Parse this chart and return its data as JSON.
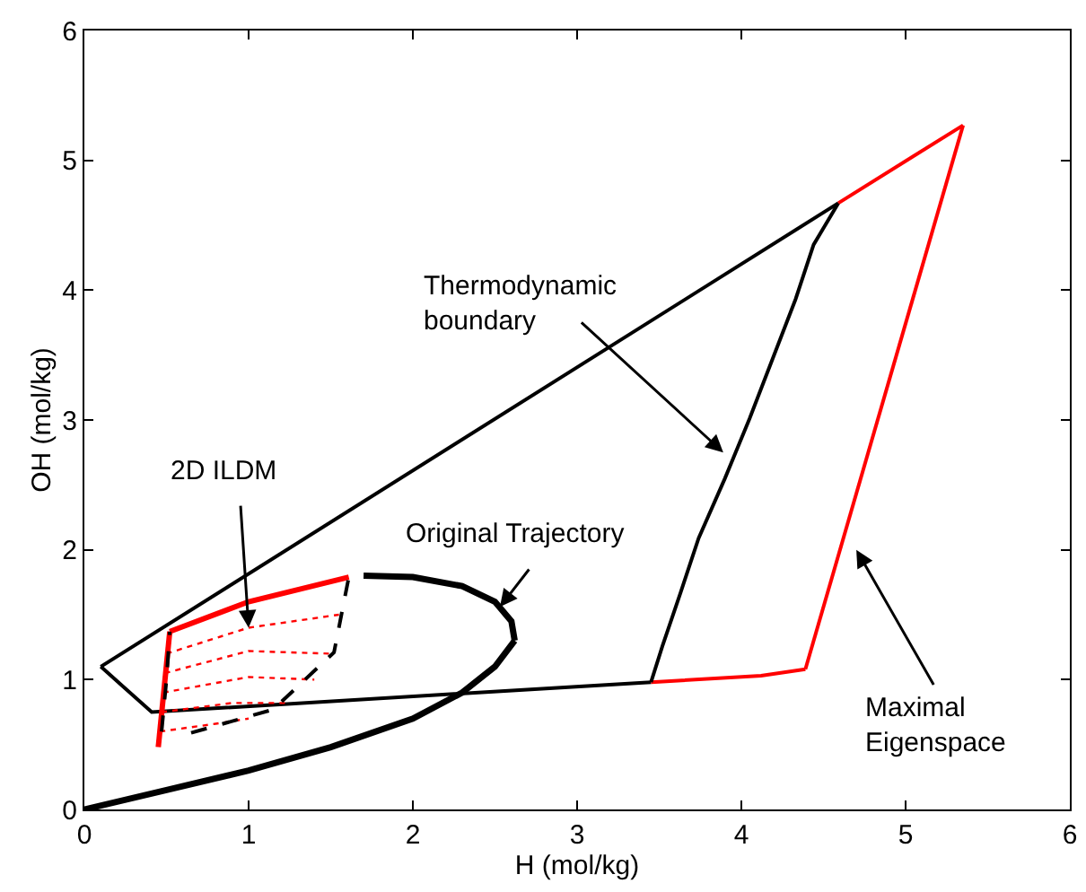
{
  "chart_data": {
    "type": "line",
    "xlabel": "H (mol/kg)",
    "ylabel": "OH (mol/kg)",
    "xlim": [
      0,
      6
    ],
    "ylim": [
      0,
      6
    ],
    "xticks": [
      0,
      1,
      2,
      3,
      4,
      5,
      6
    ],
    "yticks": [
      0,
      1,
      2,
      3,
      4,
      5,
      6
    ],
    "grid": false,
    "series": [
      {
        "color": "#ff0000",
        "line_style": "solid",
        "x": [
          3.45,
          4.12,
          4.39
        ],
        "values": [
          0.98,
          1.03,
          1.08
        ]
      },
      {
        "color": "#ff0000",
        "line_style": "solid",
        "x": [
          4.39,
          5.35
        ],
        "values": [
          1.08,
          5.27
        ]
      },
      {
        "color": "#ff0000",
        "line_style": "solid",
        "x": [
          4.59,
          5.35
        ],
        "values": [
          4.67,
          5.27
        ]
      },
      {
        "color": "#000000",
        "line_style": "solid",
        "x": [
          0.1,
          4.59
        ],
        "values": [
          1.1,
          4.67
        ]
      },
      {
        "color": "#000000",
        "line_style": "solid",
        "x": [
          0.1,
          0.41,
          3.45
        ],
        "values": [
          1.1,
          0.75,
          0.98
        ]
      },
      {
        "color": "#000000",
        "line_style": "solid",
        "x": [
          3.45,
          3.52,
          3.63,
          3.74,
          3.9,
          4.05,
          4.19,
          4.33,
          4.44,
          4.59
        ],
        "values": [
          0.98,
          1.26,
          1.67,
          2.09,
          2.55,
          3.01,
          3.47,
          3.93,
          4.35,
          4.67
        ]
      },
      {
        "color": "#ff0000",
        "line_style": "dotted",
        "x": [
          0.5,
          1.0,
          1.55
        ],
        "values": [
          1.2,
          1.4,
          1.5
        ]
      },
      {
        "color": "#ff0000",
        "line_style": "dotted",
        "x": [
          0.49,
          1.0,
          1.5
        ],
        "values": [
          1.05,
          1.22,
          1.2
        ]
      },
      {
        "color": "#ff0000",
        "line_style": "dotted",
        "x": [
          0.48,
          1.0,
          1.4
        ],
        "values": [
          0.9,
          1.02,
          1.0
        ]
      },
      {
        "color": "#ff0000",
        "line_style": "dotted",
        "x": [
          0.47,
          0.9,
          1.25
        ],
        "values": [
          0.75,
          0.82,
          0.82
        ]
      },
      {
        "color": "#ff0000",
        "line_style": "dotted",
        "x": [
          0.46,
          0.8,
          1.0
        ],
        "values": [
          0.6,
          0.66,
          0.7
        ]
      },
      {
        "color": "#000000",
        "line_style": "solid",
        "x": [
          0,
          0.5,
          1.0,
          1.5,
          2.0,
          2.3,
          2.5,
          2.62
        ],
        "values": [
          0,
          0.15,
          0.3,
          0.48,
          0.7,
          0.9,
          1.1,
          1.3
        ]
      },
      {
        "color": "#000000",
        "line_style": "solid",
        "x": [
          1.7,
          2.0,
          2.3,
          2.5,
          2.6,
          2.62
        ],
        "values": [
          1.8,
          1.79,
          1.72,
          1.6,
          1.45,
          1.3
        ]
      },
      {
        "color": "#ff0000",
        "line_style": "solid",
        "x": [
          0.45,
          0.52
        ],
        "values": [
          0.48,
          1.37
        ]
      },
      {
        "color": "#ff0000",
        "line_style": "solid",
        "x": [
          0.52,
          1.0,
          1.61
        ],
        "values": [
          1.37,
          1.6,
          1.79
        ]
      },
      {
        "color": "#000000",
        "line_style": "dashed",
        "x": [
          0.47,
          0.5,
          0.52
        ],
        "values": [
          0.6,
          1.0,
          1.37
        ]
      },
      {
        "color": "#000000",
        "line_style": "dashed",
        "x": [
          0.65,
          1.15,
          1.52,
          1.61
        ],
        "values": [
          0.59,
          0.77,
          1.21,
          1.79
        ]
      }
    ],
    "annotations": [
      "Thermodynamic\nboundary",
      {
        "text": "2D ILDM",
        "x": 1.0,
        "y": 1.4
      },
      {
        "text": "Original Trajectory",
        "x": 2.53,
        "y": 1.56
      },
      "Maximal\nEigenspace"
    ]
  }
}
